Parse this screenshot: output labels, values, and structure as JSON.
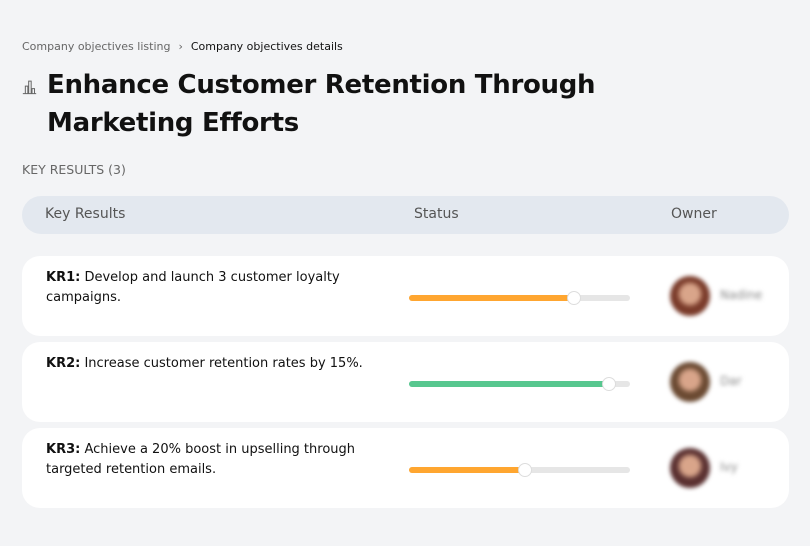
{
  "breadcrumb": {
    "parent": "Company objectives listing",
    "separator": "›",
    "current": "Company objectives details"
  },
  "title": "Enhance Customer Retention Through Marketing Efforts",
  "title_icon": "building-chart-icon",
  "section_label": "KEY RESULTS (3)",
  "table": {
    "headers": [
      "Key Results",
      "Status",
      "Owner"
    ]
  },
  "key_results": [
    {
      "id": "KR1:",
      "text": " Develop and launch 3 customer loyalty campaigns.",
      "progress_percent": 74,
      "color": "#ffa630",
      "owner": "Nadine",
      "avatar": "#7a3b2a"
    },
    {
      "id": "KR2:",
      "text": " Increase customer retention rates by 15%.",
      "progress_percent": 90,
      "color": "#57c78f",
      "owner": "Dar",
      "avatar": "#6b4a32"
    },
    {
      "id": "KR3:",
      "text": " Achieve a 20% boost in upselling through targeted retention emails.",
      "progress_percent": 52,
      "color": "#ffa630",
      "owner": "Ivy",
      "avatar": "#5a3030"
    }
  ]
}
